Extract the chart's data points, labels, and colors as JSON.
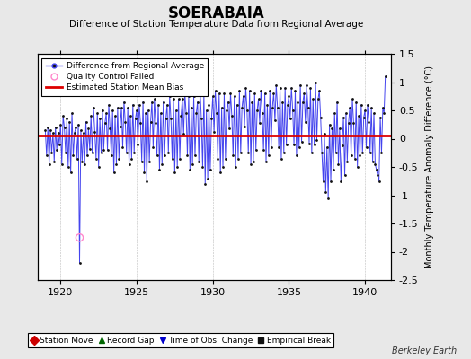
{
  "title": "SOERABAIA",
  "subtitle": "Difference of Station Temperature Data from Regional Average",
  "ylabel": "Monthly Temperature Anomaly Difference (°C)",
  "xlabel_note": "Berkeley Earth",
  "ylim": [
    -2.5,
    1.5
  ],
  "xlim": [
    1918.5,
    1941.7
  ],
  "xticks": [
    1920,
    1925,
    1930,
    1935,
    1940
  ],
  "yticks": [
    -2.5,
    -2.0,
    -1.5,
    -1.0,
    -0.5,
    0.0,
    0.5,
    1.0,
    1.5
  ],
  "ytick_labels": [
    "-2.5",
    "-2",
    "-1.5",
    "-1",
    "-0.5",
    "0",
    "0.5",
    "1",
    "1.5"
  ],
  "bias_level": 0.05,
  "line_color": "#4444EE",
  "marker_color": "#111111",
  "bias_color": "#DD0000",
  "qc_fail_x": 1921.25,
  "qc_fail_y": -1.75,
  "bg_color": "#E8E8E8",
  "plot_bg": "#FFFFFF",
  "months": [
    1919.0,
    1919.083,
    1919.167,
    1919.25,
    1919.333,
    1919.417,
    1919.5,
    1919.583,
    1919.667,
    1919.75,
    1919.833,
    1919.917,
    1920.0,
    1920.083,
    1920.167,
    1920.25,
    1920.333,
    1920.417,
    1920.5,
    1920.583,
    1920.667,
    1920.75,
    1920.833,
    1920.917,
    1921.0,
    1921.083,
    1921.167,
    1921.25,
    1921.333,
    1921.417,
    1921.5,
    1921.583,
    1921.667,
    1921.75,
    1921.833,
    1921.917,
    1922.0,
    1922.083,
    1922.167,
    1922.25,
    1922.333,
    1922.417,
    1922.5,
    1922.583,
    1922.667,
    1922.75,
    1922.833,
    1922.917,
    1923.0,
    1923.083,
    1923.167,
    1923.25,
    1923.333,
    1923.417,
    1923.5,
    1923.583,
    1923.667,
    1923.75,
    1923.833,
    1923.917,
    1924.0,
    1924.083,
    1924.167,
    1924.25,
    1924.333,
    1924.417,
    1924.5,
    1924.583,
    1924.667,
    1924.75,
    1924.833,
    1924.917,
    1925.0,
    1925.083,
    1925.167,
    1925.25,
    1925.333,
    1925.417,
    1925.5,
    1925.583,
    1925.667,
    1925.75,
    1925.833,
    1925.917,
    1926.0,
    1926.083,
    1926.167,
    1926.25,
    1926.333,
    1926.417,
    1926.5,
    1926.583,
    1926.667,
    1926.75,
    1926.833,
    1926.917,
    1927.0,
    1927.083,
    1927.167,
    1927.25,
    1927.333,
    1927.417,
    1927.5,
    1927.583,
    1927.667,
    1927.75,
    1927.833,
    1927.917,
    1928.0,
    1928.083,
    1928.167,
    1928.25,
    1928.333,
    1928.417,
    1928.5,
    1928.583,
    1928.667,
    1928.75,
    1928.833,
    1928.917,
    1929.0,
    1929.083,
    1929.167,
    1929.25,
    1929.333,
    1929.417,
    1929.5,
    1929.583,
    1929.667,
    1929.75,
    1929.833,
    1929.917,
    1930.0,
    1930.083,
    1930.167,
    1930.25,
    1930.333,
    1930.417,
    1930.5,
    1930.583,
    1930.667,
    1930.75,
    1930.833,
    1930.917,
    1931.0,
    1931.083,
    1931.167,
    1931.25,
    1931.333,
    1931.417,
    1931.5,
    1931.583,
    1931.667,
    1931.75,
    1931.833,
    1931.917,
    1932.0,
    1932.083,
    1932.167,
    1932.25,
    1932.333,
    1932.417,
    1932.5,
    1932.583,
    1932.667,
    1932.75,
    1932.833,
    1932.917,
    1933.0,
    1933.083,
    1933.167,
    1933.25,
    1933.333,
    1933.417,
    1933.5,
    1933.583,
    1933.667,
    1933.75,
    1933.833,
    1933.917,
    1934.0,
    1934.083,
    1934.167,
    1934.25,
    1934.333,
    1934.417,
    1934.5,
    1934.583,
    1934.667,
    1934.75,
    1934.833,
    1934.917,
    1935.0,
    1935.083,
    1935.167,
    1935.25,
    1935.333,
    1935.417,
    1935.5,
    1935.583,
    1935.667,
    1935.75,
    1935.833,
    1935.917,
    1936.0,
    1936.083,
    1936.167,
    1936.25,
    1936.333,
    1936.417,
    1936.5,
    1936.583,
    1936.667,
    1936.75,
    1936.833,
    1936.917,
    1937.0,
    1937.083,
    1937.167,
    1937.25,
    1937.333,
    1937.417,
    1937.5,
    1937.583,
    1937.667,
    1937.75,
    1937.833,
    1937.917,
    1938.0,
    1938.083,
    1938.167,
    1938.25,
    1938.333,
    1938.417,
    1938.5,
    1938.583,
    1938.667,
    1938.75,
    1938.833,
    1938.917,
    1939.0,
    1939.083,
    1939.167,
    1939.25,
    1939.333,
    1939.417,
    1939.5,
    1939.583,
    1939.667,
    1939.75,
    1939.833,
    1939.917,
    1940.0,
    1940.083,
    1940.167,
    1940.25,
    1940.333,
    1940.417,
    1940.5,
    1940.583,
    1940.667,
    1940.75,
    1940.833,
    1940.917,
    1941.0,
    1941.083,
    1941.167,
    1941.25,
    1941.333
  ],
  "values": [
    0.15,
    -0.3,
    0.2,
    -0.45,
    0.15,
    -0.25,
    0.1,
    -0.4,
    0.2,
    -0.2,
    0.1,
    -0.1,
    0.25,
    -0.45,
    0.4,
    0.2,
    -0.25,
    0.35,
    -0.5,
    0.3,
    -0.6,
    0.45,
    -0.3,
    0.1,
    0.2,
    -0.35,
    0.25,
    -2.2,
    0.15,
    -0.4,
    0.1,
    -0.45,
    0.3,
    -0.3,
    0.18,
    -0.18,
    0.4,
    -0.25,
    0.55,
    0.12,
    -0.35,
    0.45,
    -0.5,
    0.35,
    -0.25,
    0.5,
    -0.2,
    0.28,
    0.45,
    -0.2,
    0.6,
    0.18,
    -0.3,
    0.5,
    -0.6,
    0.4,
    -0.45,
    0.55,
    -0.35,
    0.22,
    0.55,
    -0.15,
    0.65,
    0.3,
    -0.25,
    0.55,
    -0.45,
    0.4,
    -0.35,
    0.6,
    -0.25,
    0.35,
    0.5,
    -0.1,
    0.6,
    0.28,
    -0.4,
    0.65,
    -0.6,
    0.45,
    -0.75,
    0.5,
    -0.4,
    0.3,
    0.65,
    -0.15,
    0.7,
    0.28,
    -0.3,
    0.6,
    -0.55,
    0.45,
    -0.45,
    0.65,
    -0.3,
    0.35,
    0.6,
    -0.25,
    0.75,
    0.35,
    -0.35,
    0.7,
    -0.6,
    0.5,
    -0.5,
    0.7,
    -0.35,
    0.4,
    0.7,
    0.08,
    0.8,
    0.45,
    -0.3,
    0.75,
    -0.55,
    0.55,
    -0.45,
    0.75,
    -0.3,
    0.45,
    0.65,
    -0.4,
    0.85,
    0.35,
    -0.5,
    0.8,
    -0.8,
    0.5,
    -0.7,
    0.6,
    -0.55,
    0.35,
    0.75,
    0.12,
    0.85,
    0.45,
    -0.35,
    0.8,
    -0.6,
    0.55,
    -0.5,
    0.8,
    -0.35,
    0.5,
    0.65,
    0.18,
    0.8,
    0.4,
    -0.3,
    0.75,
    -0.5,
    0.6,
    -0.35,
    0.85,
    -0.25,
    0.55,
    0.75,
    0.22,
    0.9,
    0.5,
    -0.25,
    0.85,
    -0.45,
    0.65,
    -0.4,
    0.8,
    -0.2,
    0.5,
    0.7,
    0.28,
    0.85,
    0.45,
    -0.2,
    0.8,
    -0.4,
    0.6,
    -0.3,
    0.85,
    -0.15,
    0.55,
    0.8,
    0.32,
    0.95,
    0.55,
    -0.15,
    0.9,
    -0.35,
    0.65,
    -0.25,
    0.9,
    -0.1,
    0.6,
    0.75,
    0.35,
    0.9,
    0.5,
    -0.1,
    0.85,
    -0.3,
    0.65,
    -0.15,
    0.95,
    -0.05,
    0.65,
    0.8,
    0.3,
    0.95,
    0.55,
    -0.08,
    0.9,
    -0.25,
    0.7,
    -0.1,
    1.0,
    -0.02,
    0.7,
    0.85,
    0.38,
    -0.25,
    -0.75,
    0.08,
    -0.95,
    -0.15,
    -1.05,
    0.25,
    -0.75,
    0.18,
    -0.55,
    0.45,
    -0.25,
    0.65,
    -0.45,
    0.18,
    -0.75,
    -0.12,
    0.38,
    -0.65,
    0.45,
    -0.4,
    0.28,
    0.55,
    -0.3,
    0.7,
    0.28,
    -0.35,
    0.65,
    -0.5,
    0.4,
    -0.3,
    0.6,
    -0.25,
    0.38,
    0.5,
    -0.15,
    0.6,
    0.3,
    -0.25,
    0.55,
    -0.4,
    0.45,
    -0.45,
    -0.55,
    -0.65,
    -0.75,
    0.38,
    -0.25,
    0.55,
    0.45,
    1.1
  ]
}
